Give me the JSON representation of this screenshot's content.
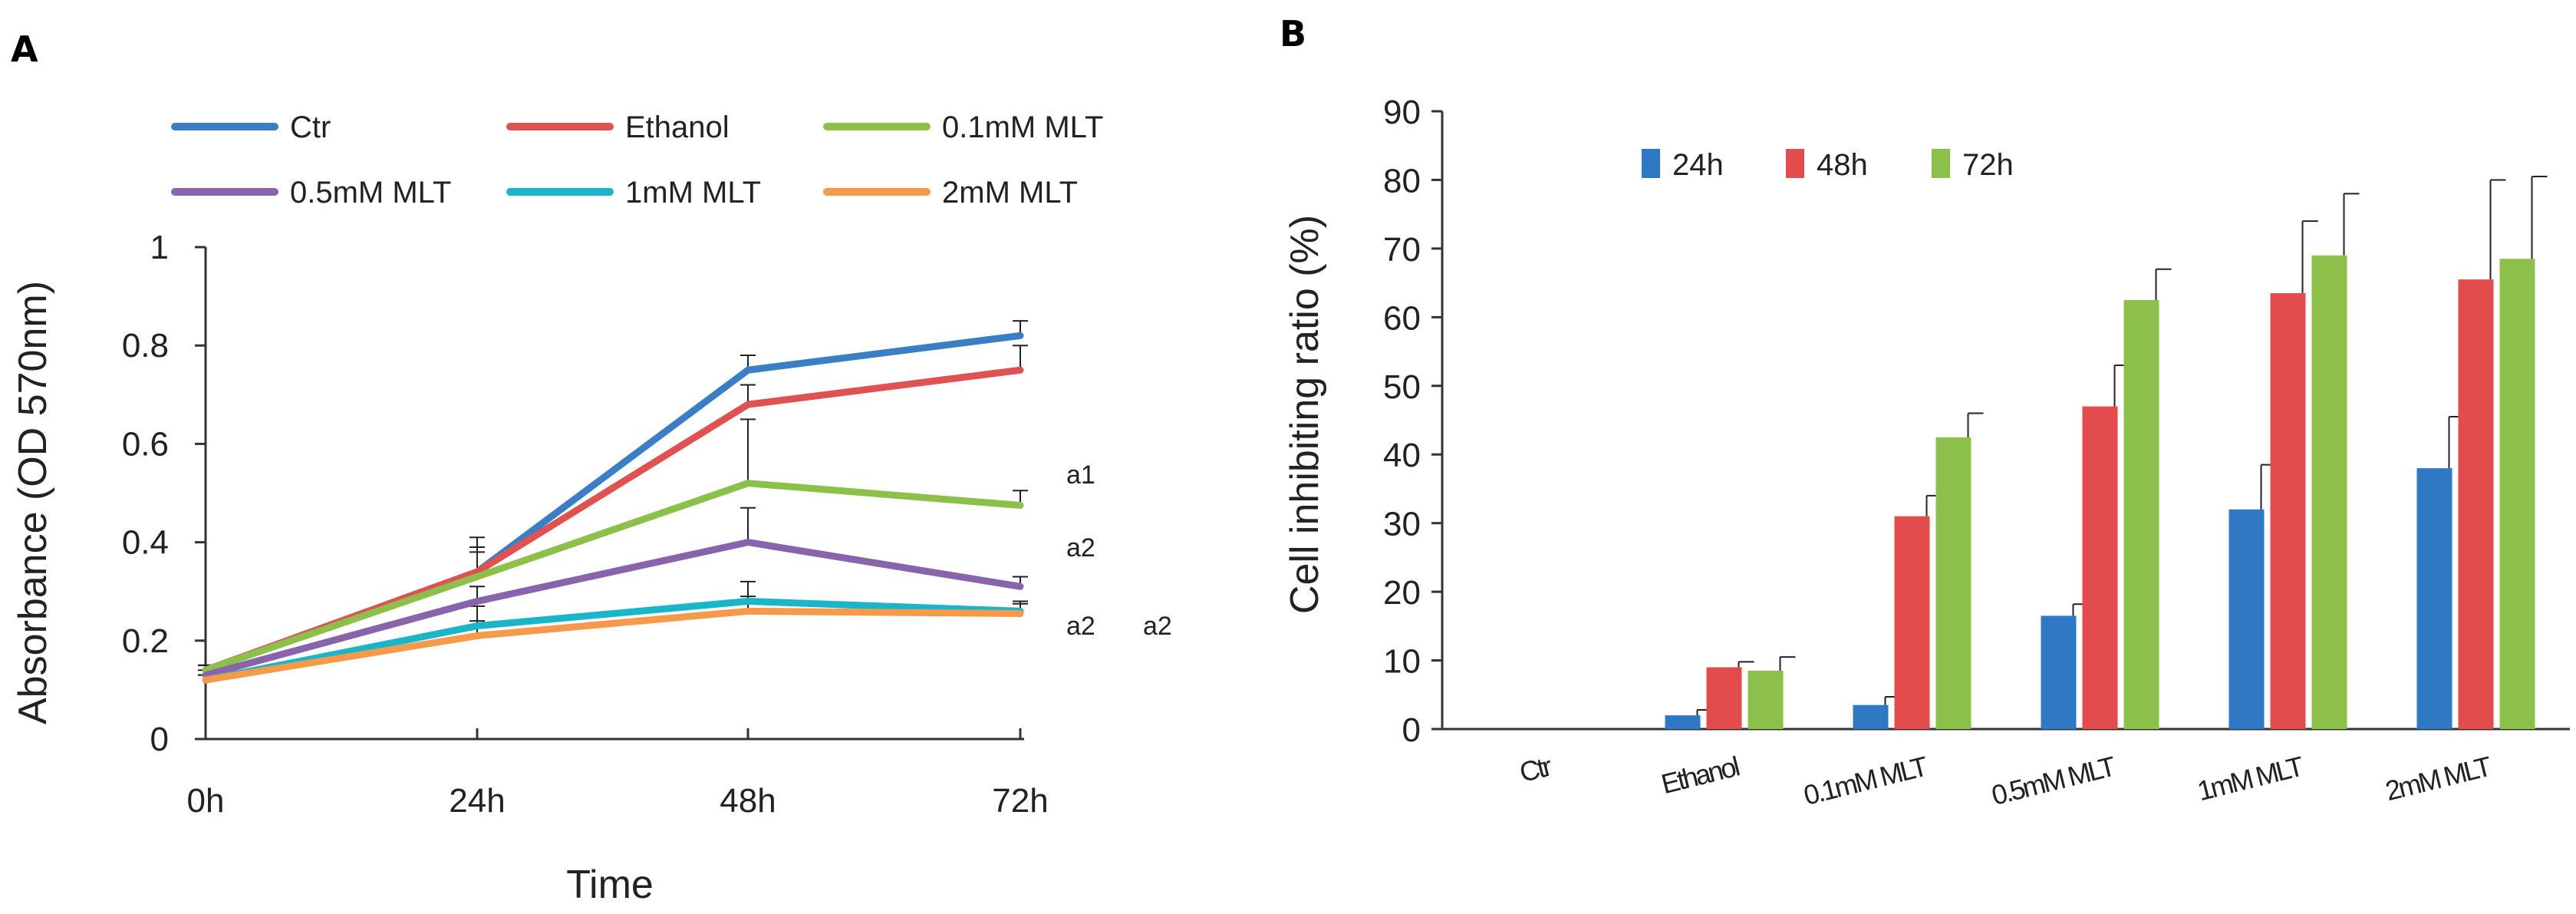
{
  "chart_data": [
    {
      "panel": "A",
      "type": "line",
      "xlabel": "Time",
      "ylabel": "Absorbance (OD 570nm)",
      "x": [
        "0h",
        "24h",
        "48h",
        "72h"
      ],
      "ylim": [
        0,
        1
      ],
      "yticks": [
        "0",
        "0.2",
        "0.4",
        "0.6",
        "0.8",
        "1"
      ],
      "grid": false,
      "legend_position": "top",
      "series": [
        {
          "name": "Ctr",
          "color": "#3a7fc4",
          "values": [
            0.14,
            0.34,
            0.75,
            0.82
          ],
          "errors": [
            0.01,
            0.07,
            0.03,
            0.03
          ]
        },
        {
          "name": "Ethanol",
          "color": "#e05252",
          "values": [
            0.14,
            0.34,
            0.68,
            0.75
          ],
          "errors": [
            0.01,
            0.05,
            0.04,
            0.05
          ]
        },
        {
          "name": "0.1mM MLT",
          "color": "#8cc04b",
          "values": [
            0.14,
            0.33,
            0.52,
            0.475
          ],
          "errors": [
            0.01,
            0.05,
            0.13,
            0.03
          ]
        },
        {
          "name": "0.5mM MLT",
          "color": "#8a63ad",
          "values": [
            0.13,
            0.28,
            0.4,
            0.31
          ],
          "errors": [
            0.01,
            0.03,
            0.07,
            0.02
          ]
        },
        {
          "name": "1mM MLT",
          "color": "#1bb5c9",
          "values": [
            0.12,
            0.23,
            0.28,
            0.26
          ],
          "errors": [
            0.01,
            0.04,
            0.04,
            0.02
          ]
        },
        {
          "name": "2mM MLT",
          "color": "#f59a4a",
          "values": [
            0.12,
            0.21,
            0.26,
            0.255
          ],
          "errors": [
            0.01,
            0.03,
            0.03,
            0.02
          ]
        }
      ],
      "annotations": [
        "a1",
        "a2",
        "a2",
        "a2"
      ]
    },
    {
      "panel": "B",
      "type": "bar",
      "ylabel": "Cell inhibiting ratio (%)",
      "xlabel": "",
      "categories": [
        "Ctr",
        "Ethanol",
        "0.1mM MLT",
        "0.5mM MLT",
        "1mM MLT",
        "2mM MLT"
      ],
      "category_display": [
        "Ctr",
        "Ethanol",
        "0.1mM MLT",
        "0.5mM MLT",
        "1mM MLT",
        "2mM MLT"
      ],
      "ylim": [
        0,
        90
      ],
      "yticks": [
        "0",
        "10",
        "20",
        "30",
        "40",
        "50",
        "60",
        "70",
        "80",
        "90"
      ],
      "grid": false,
      "legend_position": "top-left",
      "series": [
        {
          "name": "24h",
          "color": "#2e78c4",
          "values": [
            0,
            2.0,
            3.5,
            16.5,
            32.0,
            38.0
          ],
          "errors": [
            0,
            0.8,
            1.2,
            1.7,
            6.5,
            7.5
          ]
        },
        {
          "name": "48h",
          "color": "#e34c4c",
          "values": [
            0,
            9.0,
            31.0,
            47.0,
            63.5,
            65.5
          ],
          "errors": [
            0,
            0.8,
            3.0,
            6.0,
            10.5,
            14.5
          ]
        },
        {
          "name": "72h",
          "color": "#8dc04a",
          "values": [
            0,
            8.5,
            42.5,
            62.5,
            69.0,
            68.5
          ],
          "errors": [
            0,
            2.0,
            3.5,
            4.5,
            9.0,
            12.0
          ]
        }
      ]
    }
  ]
}
